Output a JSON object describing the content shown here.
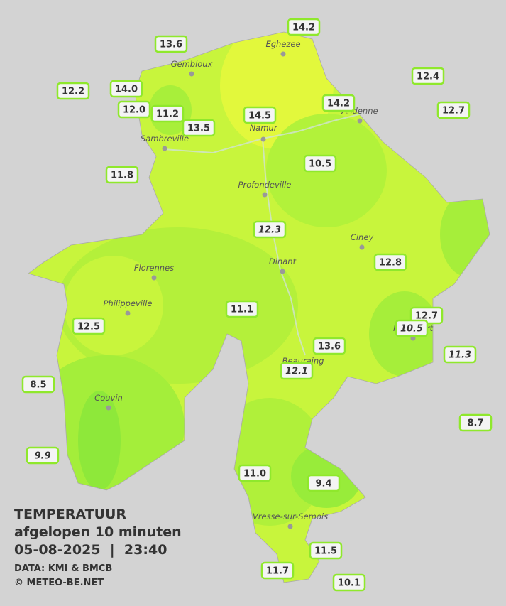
{
  "header": {
    "title": "TEMPERATUUR",
    "subtitle": "afgelopen 10 minuten",
    "datetime": "05-08-2025  |  23:40",
    "source": "DATA: KMI & BMCB",
    "copyright": "© METEO-BE.NET"
  },
  "towns": [
    {
      "name": "Eghezee"
    },
    {
      "name": "Gembloux"
    },
    {
      "name": "Andenne"
    },
    {
      "name": "Namur"
    },
    {
      "name": "Sambreville"
    },
    {
      "name": "Profondeville"
    },
    {
      "name": "Ciney"
    },
    {
      "name": "Dinant"
    },
    {
      "name": "Florennes"
    },
    {
      "name": "Philippeville"
    },
    {
      "name": "Rochefort"
    },
    {
      "name": "Beauraing"
    },
    {
      "name": "Couvin"
    },
    {
      "name": "Vresse-sur-Semois"
    }
  ],
  "stations": [
    {
      "temp": "14.2"
    },
    {
      "temp": "13.6"
    },
    {
      "temp": "12.4"
    },
    {
      "temp": "12.2"
    },
    {
      "temp": "14.0"
    },
    {
      "temp": "12.0"
    },
    {
      "temp": "11.2"
    },
    {
      "temp": "14.2"
    },
    {
      "temp": "12.7"
    },
    {
      "temp": "14.5"
    },
    {
      "temp": "13.5"
    },
    {
      "temp": "10.5"
    },
    {
      "temp": "11.8"
    },
    {
      "temp": "12.3",
      "italic": true
    },
    {
      "temp": "12.8"
    },
    {
      "temp": "11.1"
    },
    {
      "temp": "12.7"
    },
    {
      "temp": "10.5",
      "italic": true
    },
    {
      "temp": "12.5"
    },
    {
      "temp": "13.6"
    },
    {
      "temp": "11.3",
      "italic": true
    },
    {
      "temp": "12.1",
      "italic": true
    },
    {
      "temp": "8.5"
    },
    {
      "temp": "8.7"
    },
    {
      "temp": "9.9",
      "italic": true
    },
    {
      "temp": "11.0"
    },
    {
      "temp": "9.4"
    },
    {
      "temp": "11.5"
    },
    {
      "temp": "11.7"
    },
    {
      "temp": "10.1"
    }
  ]
}
